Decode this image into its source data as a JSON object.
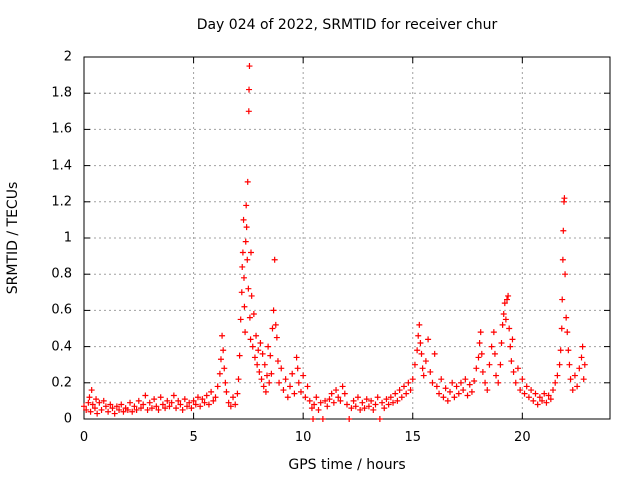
{
  "chart_data": {
    "type": "scatter",
    "title": "Day 024 of 2022, SRMTID for receiver chur",
    "xlabel": "GPS time / hours",
    "ylabel": "SRMTID / TECUs",
    "xlim": [
      0,
      24
    ],
    "ylim": [
      0,
      2
    ],
    "grid": true,
    "marker": "+",
    "color": "#ff0000",
    "xticks": [
      0,
      5,
      10,
      15,
      20
    ],
    "xtick_labels": [
      "0",
      "5",
      "10",
      "15",
      "20"
    ],
    "yticks": [
      0,
      0.2,
      0.4,
      0.6,
      0.8,
      1,
      1.2,
      1.4,
      1.6,
      1.8,
      2
    ],
    "ytick_labels": [
      "0",
      "0.2",
      "0.4",
      "0.6",
      "0.8",
      "1",
      "1.2",
      "1.4",
      "1.6",
      "1.8",
      "2"
    ],
    "series": [
      {
        "name": "SRMTID",
        "points": [
          [
            0.0,
            0.07
          ],
          [
            0.1,
            0.05
          ],
          [
            0.2,
            0.09
          ],
          [
            0.25,
            0.12
          ],
          [
            0.3,
            0.04
          ],
          [
            0.35,
            0.16
          ],
          [
            0.4,
            0.08
          ],
          [
            0.5,
            0.06
          ],
          [
            0.55,
            0.11
          ],
          [
            0.6,
            0.03
          ],
          [
            0.7,
            0.09
          ],
          [
            0.8,
            0.05
          ],
          [
            0.9,
            0.1
          ],
          [
            1.0,
            0.07
          ],
          [
            1.1,
            0.04
          ],
          [
            1.2,
            0.08
          ],
          [
            1.3,
            0.06
          ],
          [
            1.4,
            0.03
          ],
          [
            1.5,
            0.07
          ],
          [
            1.6,
            0.05
          ],
          [
            1.7,
            0.08
          ],
          [
            1.8,
            0.04
          ],
          [
            1.9,
            0.06
          ],
          [
            2.0,
            0.05
          ],
          [
            2.1,
            0.09
          ],
          [
            2.2,
            0.04
          ],
          [
            2.3,
            0.07
          ],
          [
            2.4,
            0.05
          ],
          [
            2.5,
            0.1
          ],
          [
            2.6,
            0.06
          ],
          [
            2.7,
            0.08
          ],
          [
            2.8,
            0.13
          ],
          [
            2.9,
            0.05
          ],
          [
            3.0,
            0.09
          ],
          [
            3.1,
            0.06
          ],
          [
            3.2,
            0.11
          ],
          [
            3.3,
            0.07
          ],
          [
            3.4,
            0.05
          ],
          [
            3.5,
            0.12
          ],
          [
            3.6,
            0.08
          ],
          [
            3.7,
            0.06
          ],
          [
            3.8,
            0.1
          ],
          [
            3.9,
            0.07
          ],
          [
            4.0,
            0.09
          ],
          [
            4.1,
            0.13
          ],
          [
            4.2,
            0.06
          ],
          [
            4.3,
            0.1
          ],
          [
            4.4,
            0.08
          ],
          [
            4.5,
            0.05
          ],
          [
            4.6,
            0.11
          ],
          [
            4.7,
            0.07
          ],
          [
            4.8,
            0.09
          ],
          [
            4.9,
            0.06
          ],
          [
            5.0,
            0.1
          ],
          [
            5.1,
            0.08
          ],
          [
            5.2,
            0.12
          ],
          [
            5.3,
            0.07
          ],
          [
            5.4,
            0.11
          ],
          [
            5.5,
            0.09
          ],
          [
            5.6,
            0.13
          ],
          [
            5.7,
            0.08
          ],
          [
            5.8,
            0.15
          ],
          [
            5.9,
            0.1
          ],
          [
            6.0,
            0.12
          ],
          [
            6.1,
            0.18
          ],
          [
            6.2,
            0.25
          ],
          [
            6.25,
            0.33
          ],
          [
            6.3,
            0.46
          ],
          [
            6.35,
            0.38
          ],
          [
            6.4,
            0.28
          ],
          [
            6.45,
            0.2
          ],
          [
            6.5,
            0.15
          ],
          [
            6.6,
            0.09
          ],
          [
            6.7,
            0.07
          ],
          [
            6.8,
            0.12
          ],
          [
            6.9,
            0.08
          ],
          [
            7.0,
            0.14
          ],
          [
            7.05,
            0.22
          ],
          [
            7.1,
            0.35
          ],
          [
            7.15,
            0.55
          ],
          [
            7.2,
            0.7
          ],
          [
            7.22,
            0.84
          ],
          [
            7.25,
            0.92
          ],
          [
            7.28,
            1.1
          ],
          [
            7.3,
            0.78
          ],
          [
            7.32,
            0.62
          ],
          [
            7.35,
            0.48
          ],
          [
            7.38,
            0.98
          ],
          [
            7.4,
            1.18
          ],
          [
            7.42,
            1.06
          ],
          [
            7.45,
            0.88
          ],
          [
            7.47,
            1.31
          ],
          [
            7.5,
            0.72
          ],
          [
            7.52,
            1.7
          ],
          [
            7.53,
            1.82
          ],
          [
            7.55,
            1.95
          ],
          [
            7.57,
            0.56
          ],
          [
            7.6,
            0.44
          ],
          [
            7.62,
            0.92
          ],
          [
            7.65,
            0.68
          ],
          [
            7.7,
            0.4
          ],
          [
            7.75,
            0.58
          ],
          [
            7.8,
            0.34
          ],
          [
            7.85,
            0.46
          ],
          [
            7.9,
            0.3
          ],
          [
            7.95,
            0.38
          ],
          [
            8.0,
            0.26
          ],
          [
            8.05,
            0.42
          ],
          [
            8.1,
            0.22
          ],
          [
            8.15,
            0.36
          ],
          [
            8.2,
            0.18
          ],
          [
            8.25,
            0.3
          ],
          [
            8.3,
            0.15
          ],
          [
            8.35,
            0.24
          ],
          [
            8.4,
            0.4
          ],
          [
            8.45,
            0.2
          ],
          [
            8.5,
            0.35
          ],
          [
            8.55,
            0.25
          ],
          [
            8.6,
            0.5
          ],
          [
            8.65,
            0.6
          ],
          [
            8.7,
            0.88
          ],
          [
            8.75,
            0.52
          ],
          [
            8.8,
            0.45
          ],
          [
            8.85,
            0.32
          ],
          [
            8.9,
            0.2
          ],
          [
            9.0,
            0.28
          ],
          [
            9.1,
            0.16
          ],
          [
            9.2,
            0.22
          ],
          [
            9.3,
            0.12
          ],
          [
            9.4,
            0.18
          ],
          [
            9.5,
            0.25
          ],
          [
            9.6,
            0.14
          ],
          [
            9.7,
            0.34
          ],
          [
            9.75,
            0.28
          ],
          [
            9.8,
            0.2
          ],
          [
            9.9,
            0.15
          ],
          [
            10.0,
            0.24
          ],
          [
            10.1,
            0.12
          ],
          [
            10.2,
            0.18
          ],
          [
            10.3,
            0.1
          ],
          [
            10.4,
            0.06
          ],
          [
            10.45,
            0.0
          ],
          [
            10.5,
            0.08
          ],
          [
            10.6,
            0.12
          ],
          [
            10.7,
            0.05
          ],
          [
            10.8,
            0.09
          ],
          [
            10.9,
            0.0
          ],
          [
            11.0,
            0.1
          ],
          [
            11.1,
            0.07
          ],
          [
            11.2,
            0.11
          ],
          [
            11.3,
            0.14
          ],
          [
            11.4,
            0.09
          ],
          [
            11.5,
            0.16
          ],
          [
            11.6,
            0.12
          ],
          [
            11.7,
            0.1
          ],
          [
            11.8,
            0.18
          ],
          [
            11.9,
            0.14
          ],
          [
            12.0,
            0.08
          ],
          [
            12.1,
            0.0
          ],
          [
            12.2,
            0.06
          ],
          [
            12.3,
            0.1
          ],
          [
            12.4,
            0.07
          ],
          [
            12.5,
            0.12
          ],
          [
            12.6,
            0.05
          ],
          [
            12.7,
            0.09
          ],
          [
            12.8,
            0.06
          ],
          [
            12.9,
            0.11
          ],
          [
            13.0,
            0.07
          ],
          [
            13.1,
            0.1
          ],
          [
            13.2,
            0.05
          ],
          [
            13.3,
            0.08
          ],
          [
            13.4,
            0.12
          ],
          [
            13.5,
            0.0
          ],
          [
            13.6,
            0.09
          ],
          [
            13.7,
            0.06
          ],
          [
            13.8,
            0.11
          ],
          [
            13.9,
            0.08
          ],
          [
            14.0,
            0.12
          ],
          [
            14.1,
            0.09
          ],
          [
            14.2,
            0.14
          ],
          [
            14.3,
            0.1
          ],
          [
            14.4,
            0.16
          ],
          [
            14.5,
            0.12
          ],
          [
            14.6,
            0.18
          ],
          [
            14.7,
            0.14
          ],
          [
            14.8,
            0.2
          ],
          [
            14.9,
            0.16
          ],
          [
            15.0,
            0.22
          ],
          [
            15.1,
            0.3
          ],
          [
            15.2,
            0.38
          ],
          [
            15.25,
            0.46
          ],
          [
            15.3,
            0.52
          ],
          [
            15.35,
            0.42
          ],
          [
            15.4,
            0.36
          ],
          [
            15.45,
            0.28
          ],
          [
            15.5,
            0.24
          ],
          [
            15.6,
            0.32
          ],
          [
            15.7,
            0.44
          ],
          [
            15.8,
            0.26
          ],
          [
            15.9,
            0.2
          ],
          [
            16.0,
            0.36
          ],
          [
            16.1,
            0.18
          ],
          [
            16.2,
            0.14
          ],
          [
            16.3,
            0.22
          ],
          [
            16.4,
            0.12
          ],
          [
            16.5,
            0.17
          ],
          [
            16.6,
            0.1
          ],
          [
            16.7,
            0.15
          ],
          [
            16.8,
            0.2
          ],
          [
            16.9,
            0.12
          ],
          [
            17.0,
            0.18
          ],
          [
            17.1,
            0.14
          ],
          [
            17.2,
            0.2
          ],
          [
            17.3,
            0.16
          ],
          [
            17.4,
            0.22
          ],
          [
            17.5,
            0.13
          ],
          [
            17.6,
            0.19
          ],
          [
            17.7,
            0.15
          ],
          [
            17.8,
            0.21
          ],
          [
            17.9,
            0.28
          ],
          [
            18.0,
            0.34
          ],
          [
            18.05,
            0.42
          ],
          [
            18.1,
            0.48
          ],
          [
            18.15,
            0.36
          ],
          [
            18.2,
            0.26
          ],
          [
            18.3,
            0.2
          ],
          [
            18.4,
            0.16
          ],
          [
            18.5,
            0.3
          ],
          [
            18.6,
            0.4
          ],
          [
            18.7,
            0.48
          ],
          [
            18.75,
            0.36
          ],
          [
            18.8,
            0.24
          ],
          [
            18.9,
            0.2
          ],
          [
            19.0,
            0.3
          ],
          [
            19.05,
            0.42
          ],
          [
            19.1,
            0.52
          ],
          [
            19.15,
            0.58
          ],
          [
            19.2,
            0.64
          ],
          [
            19.25,
            0.55
          ],
          [
            19.3,
            0.66
          ],
          [
            19.35,
            0.68
          ],
          [
            19.4,
            0.5
          ],
          [
            19.45,
            0.4
          ],
          [
            19.5,
            0.32
          ],
          [
            19.55,
            0.44
          ],
          [
            19.6,
            0.26
          ],
          [
            19.7,
            0.2
          ],
          [
            19.8,
            0.28
          ],
          [
            19.9,
            0.16
          ],
          [
            20.0,
            0.22
          ],
          [
            20.1,
            0.14
          ],
          [
            20.2,
            0.18
          ],
          [
            20.3,
            0.12
          ],
          [
            20.4,
            0.16
          ],
          [
            20.5,
            0.1
          ],
          [
            20.6,
            0.14
          ],
          [
            20.7,
            0.08
          ],
          [
            20.8,
            0.12
          ],
          [
            20.9,
            0.1
          ],
          [
            21.0,
            0.14
          ],
          [
            21.1,
            0.09
          ],
          [
            21.2,
            0.13
          ],
          [
            21.3,
            0.11
          ],
          [
            21.4,
            0.16
          ],
          [
            21.5,
            0.2
          ],
          [
            21.6,
            0.24
          ],
          [
            21.7,
            0.3
          ],
          [
            21.75,
            0.38
          ],
          [
            21.8,
            0.5
          ],
          [
            21.82,
            0.66
          ],
          [
            21.85,
            0.88
          ],
          [
            21.87,
            1.04
          ],
          [
            21.9,
            1.2
          ],
          [
            21.92,
            1.22
          ],
          [
            21.95,
            0.8
          ],
          [
            22.0,
            0.56
          ],
          [
            22.05,
            0.48
          ],
          [
            22.1,
            0.38
          ],
          [
            22.15,
            0.3
          ],
          [
            22.2,
            0.22
          ],
          [
            22.3,
            0.16
          ],
          [
            22.4,
            0.24
          ],
          [
            22.5,
            0.18
          ],
          [
            22.6,
            0.28
          ],
          [
            22.7,
            0.34
          ],
          [
            22.75,
            0.4
          ],
          [
            22.8,
            0.22
          ],
          [
            22.85,
            0.3
          ]
        ]
      }
    ]
  }
}
